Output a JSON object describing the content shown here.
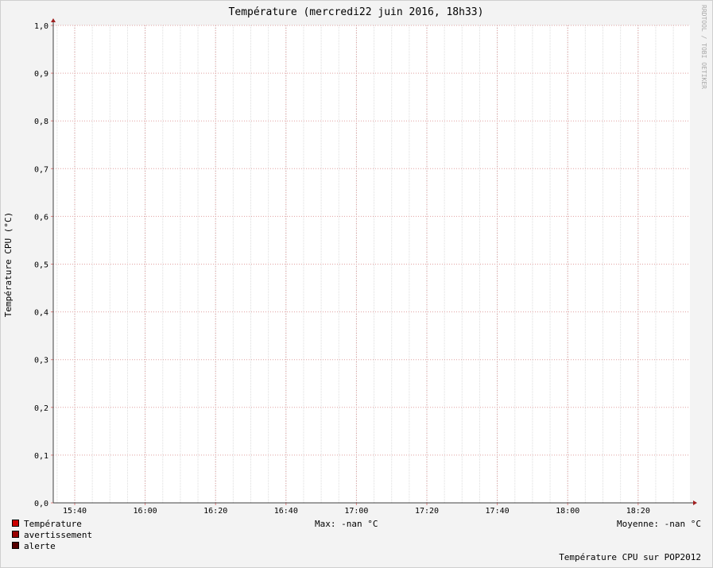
{
  "chart_data": {
    "type": "line",
    "title": "Température (mercredi22 juin 2016, 18h33)",
    "ylabel": "Température CPU (°C)",
    "watermark": "RRDTOOL / TOBI OETIKER",
    "ylim": [
      0,
      1.0
    ],
    "y_ticks": [
      "0,0",
      "0,1",
      "0,2",
      "0,3",
      "0,4",
      "0,5",
      "0,6",
      "0,7",
      "0,8",
      "0,9",
      "1,0"
    ],
    "x_ticks": [
      "15:40",
      "16:00",
      "16:20",
      "16:40",
      "17:00",
      "17:20",
      "17:40",
      "18:00",
      "18:20"
    ],
    "grid": true,
    "series": [
      {
        "name": "Température",
        "color": "#cc0000",
        "values": []
      },
      {
        "name": "avertissement",
        "color": "#990000",
        "values": []
      },
      {
        "name": "alerte",
        "color": "#550000",
        "values": []
      }
    ],
    "stats": {
      "max": "Max: -nan °C",
      "mean": "Moyenne: -nan °C"
    },
    "footer": "Température CPU sur POP2012"
  }
}
